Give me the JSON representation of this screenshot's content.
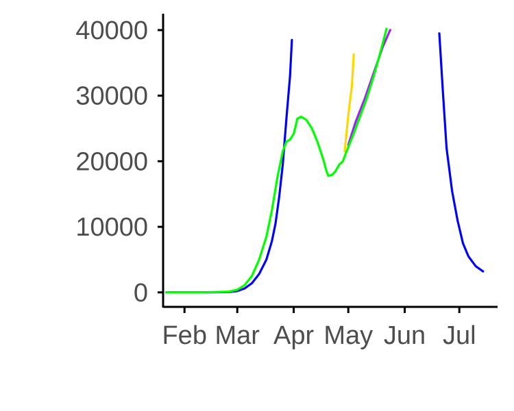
{
  "chart_data": {
    "type": "line",
    "title": "",
    "xlabel": "",
    "ylabel": "",
    "x_ticks": [
      "Feb",
      "Mar",
      "Apr",
      "May",
      "Jun",
      "Jul"
    ],
    "x_tick_dates": [
      "2020-02-01",
      "2020-03-01",
      "2020-04-01",
      "2020-05-01",
      "2020-06-01",
      "2020-07-01"
    ],
    "y_ticks": [
      0,
      10000,
      20000,
      30000,
      40000
    ],
    "y_tick_labels": [
      "0",
      "10000",
      "20000",
      "30000",
      "40000"
    ],
    "xlim": [
      "2020-01-21",
      "2020-07-22"
    ],
    "ylim": [
      -2000,
      42500
    ],
    "grid": false,
    "legend": "none",
    "series": [
      {
        "color": "#0000FF",
        "points": [
          [
            "2020-01-22",
            0
          ],
          [
            "2020-02-10",
            0
          ],
          [
            "2020-02-25",
            50
          ],
          [
            "2020-03-01",
            200
          ],
          [
            "2020-03-05",
            600
          ],
          [
            "2020-03-09",
            1400
          ],
          [
            "2020-03-13",
            2800
          ],
          [
            "2020-03-17",
            5000
          ],
          [
            "2020-03-20",
            7800
          ],
          [
            "2020-03-22",
            10500
          ],
          [
            "2020-03-24",
            14500
          ],
          [
            "2020-03-26",
            19500
          ],
          [
            "2020-03-28",
            26500
          ],
          [
            "2020-03-30",
            33000
          ],
          [
            "2020-03-31",
            38500
          ]
        ]
      },
      {
        "color": "#0000FF",
        "points": [
          [
            "2020-06-20",
            39500
          ],
          [
            "2020-06-22",
            30500
          ],
          [
            "2020-06-24",
            22000
          ],
          [
            "2020-06-27",
            15500
          ],
          [
            "2020-06-30",
            11000
          ],
          [
            "2020-07-03",
            7500
          ],
          [
            "2020-07-06",
            5500
          ],
          [
            "2020-07-10",
            4000
          ],
          [
            "2020-07-14",
            3200
          ]
        ]
      },
      {
        "color": "#FFD700",
        "points": [
          [
            "2020-04-29",
            21500
          ],
          [
            "2020-05-01",
            27000
          ],
          [
            "2020-05-03",
            31500
          ],
          [
            "2020-05-04",
            36300
          ]
        ]
      },
      {
        "color": "#A020F0",
        "points": [
          [
            "2020-05-01",
            22500
          ],
          [
            "2020-05-05",
            26000
          ],
          [
            "2020-05-10",
            29500
          ],
          [
            "2020-05-15",
            33500
          ],
          [
            "2020-05-20",
            37500
          ],
          [
            "2020-05-24",
            40000
          ]
        ]
      },
      {
        "color": "#00FF00",
        "points": [
          [
            "2020-01-22",
            0
          ],
          [
            "2020-02-10",
            0
          ],
          [
            "2020-02-25",
            100
          ],
          [
            "2020-03-01",
            400
          ],
          [
            "2020-03-05",
            1100
          ],
          [
            "2020-03-09",
            2500
          ],
          [
            "2020-03-13",
            5000
          ],
          [
            "2020-03-17",
            8500
          ],
          [
            "2020-03-20",
            12500
          ],
          [
            "2020-03-23",
            17500
          ],
          [
            "2020-03-26",
            21500
          ],
          [
            "2020-03-28",
            23000
          ],
          [
            "2020-03-30",
            23300
          ],
          [
            "2020-04-01",
            24200
          ],
          [
            "2020-04-03",
            26500
          ],
          [
            "2020-04-05",
            26800
          ],
          [
            "2020-04-08",
            26300
          ],
          [
            "2020-04-11",
            25000
          ],
          [
            "2020-04-14",
            23000
          ],
          [
            "2020-04-17",
            20500
          ],
          [
            "2020-04-19",
            18500
          ],
          [
            "2020-04-20",
            17800
          ],
          [
            "2020-04-22",
            17900
          ],
          [
            "2020-04-24",
            18500
          ],
          [
            "2020-04-26",
            19500
          ],
          [
            "2020-04-28",
            20000
          ],
          [
            "2020-04-30",
            21500
          ],
          [
            "2020-05-03",
            23500
          ],
          [
            "2020-05-07",
            26500
          ],
          [
            "2020-05-11",
            29500
          ],
          [
            "2020-05-15",
            33000
          ],
          [
            "2020-05-19",
            37000
          ],
          [
            "2020-05-22",
            40200
          ]
        ]
      }
    ]
  }
}
